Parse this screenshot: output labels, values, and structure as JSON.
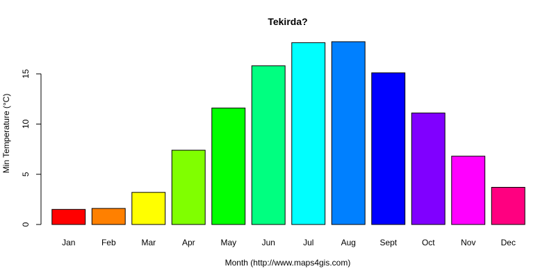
{
  "chart_data": {
    "type": "bar",
    "title": "Tekirda?",
    "xlabel": "Month (http://www.maps4gis.com)",
    "ylabel": "Min Temperature (°C)",
    "categories": [
      "Jan",
      "Feb",
      "Mar",
      "Apr",
      "May",
      "Jun",
      "Jul",
      "Aug",
      "Sept",
      "Oct",
      "Nov",
      "Dec"
    ],
    "values": [
      1.5,
      1.6,
      3.2,
      7.4,
      11.6,
      15.8,
      18.1,
      18.2,
      15.1,
      11.1,
      6.8,
      3.7
    ],
    "colors": [
      "#ff0000",
      "#ff8000",
      "#ffff00",
      "#80ff00",
      "#00ff00",
      "#00ff80",
      "#00ffff",
      "#0080ff",
      "#0000ff",
      "#8000ff",
      "#ff00ff",
      "#ff0080"
    ],
    "yticks": [
      0,
      5,
      10,
      15
    ],
    "ylim": [
      0,
      18.2
    ],
    "grid": false,
    "legend": "none"
  }
}
